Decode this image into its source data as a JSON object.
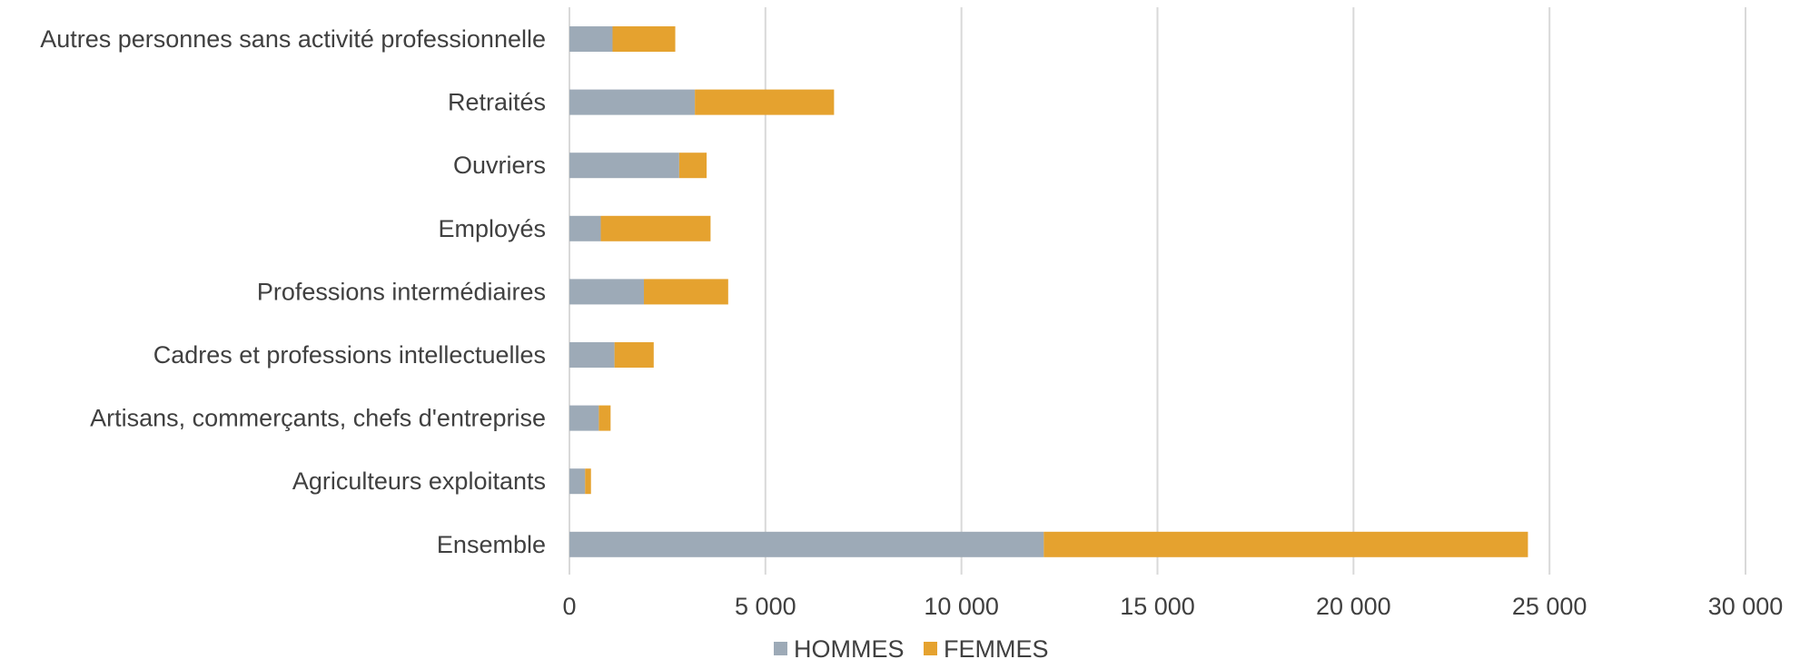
{
  "chart_data": {
    "type": "bar",
    "orientation": "horizontal",
    "stacked": true,
    "title": "",
    "xlabel": "",
    "ylabel": "",
    "categories": [
      "Autres personnes sans activité professionnelle",
      "Retraités",
      "Ouvriers",
      "Employés",
      "Professions intermédiaires",
      "Cadres et professions intellectuelles",
      "Artisans, commerçants, chefs d'entreprise",
      "Agriculteurs exploitants",
      "Ensemble"
    ],
    "series": [
      {
        "name": "HOMMES",
        "color": "#9daab7",
        "values": [
          1100,
          3200,
          2800,
          800,
          1900,
          1150,
          750,
          400,
          12100
        ]
      },
      {
        "name": "FEMMES",
        "color": "#e5a22f",
        "values": [
          1600,
          3550,
          700,
          2800,
          2150,
          1000,
          300,
          150,
          12350
        ]
      }
    ],
    "xlim": [
      0,
      30000
    ],
    "xticks": [
      0,
      5000,
      10000,
      15000,
      20000,
      25000,
      30000
    ],
    "xtick_labels": [
      "0",
      "5 000",
      "10 000",
      "15 000",
      "20 000",
      "25 000",
      "30 000"
    ],
    "grid": "vertical",
    "legend": "bottom"
  }
}
